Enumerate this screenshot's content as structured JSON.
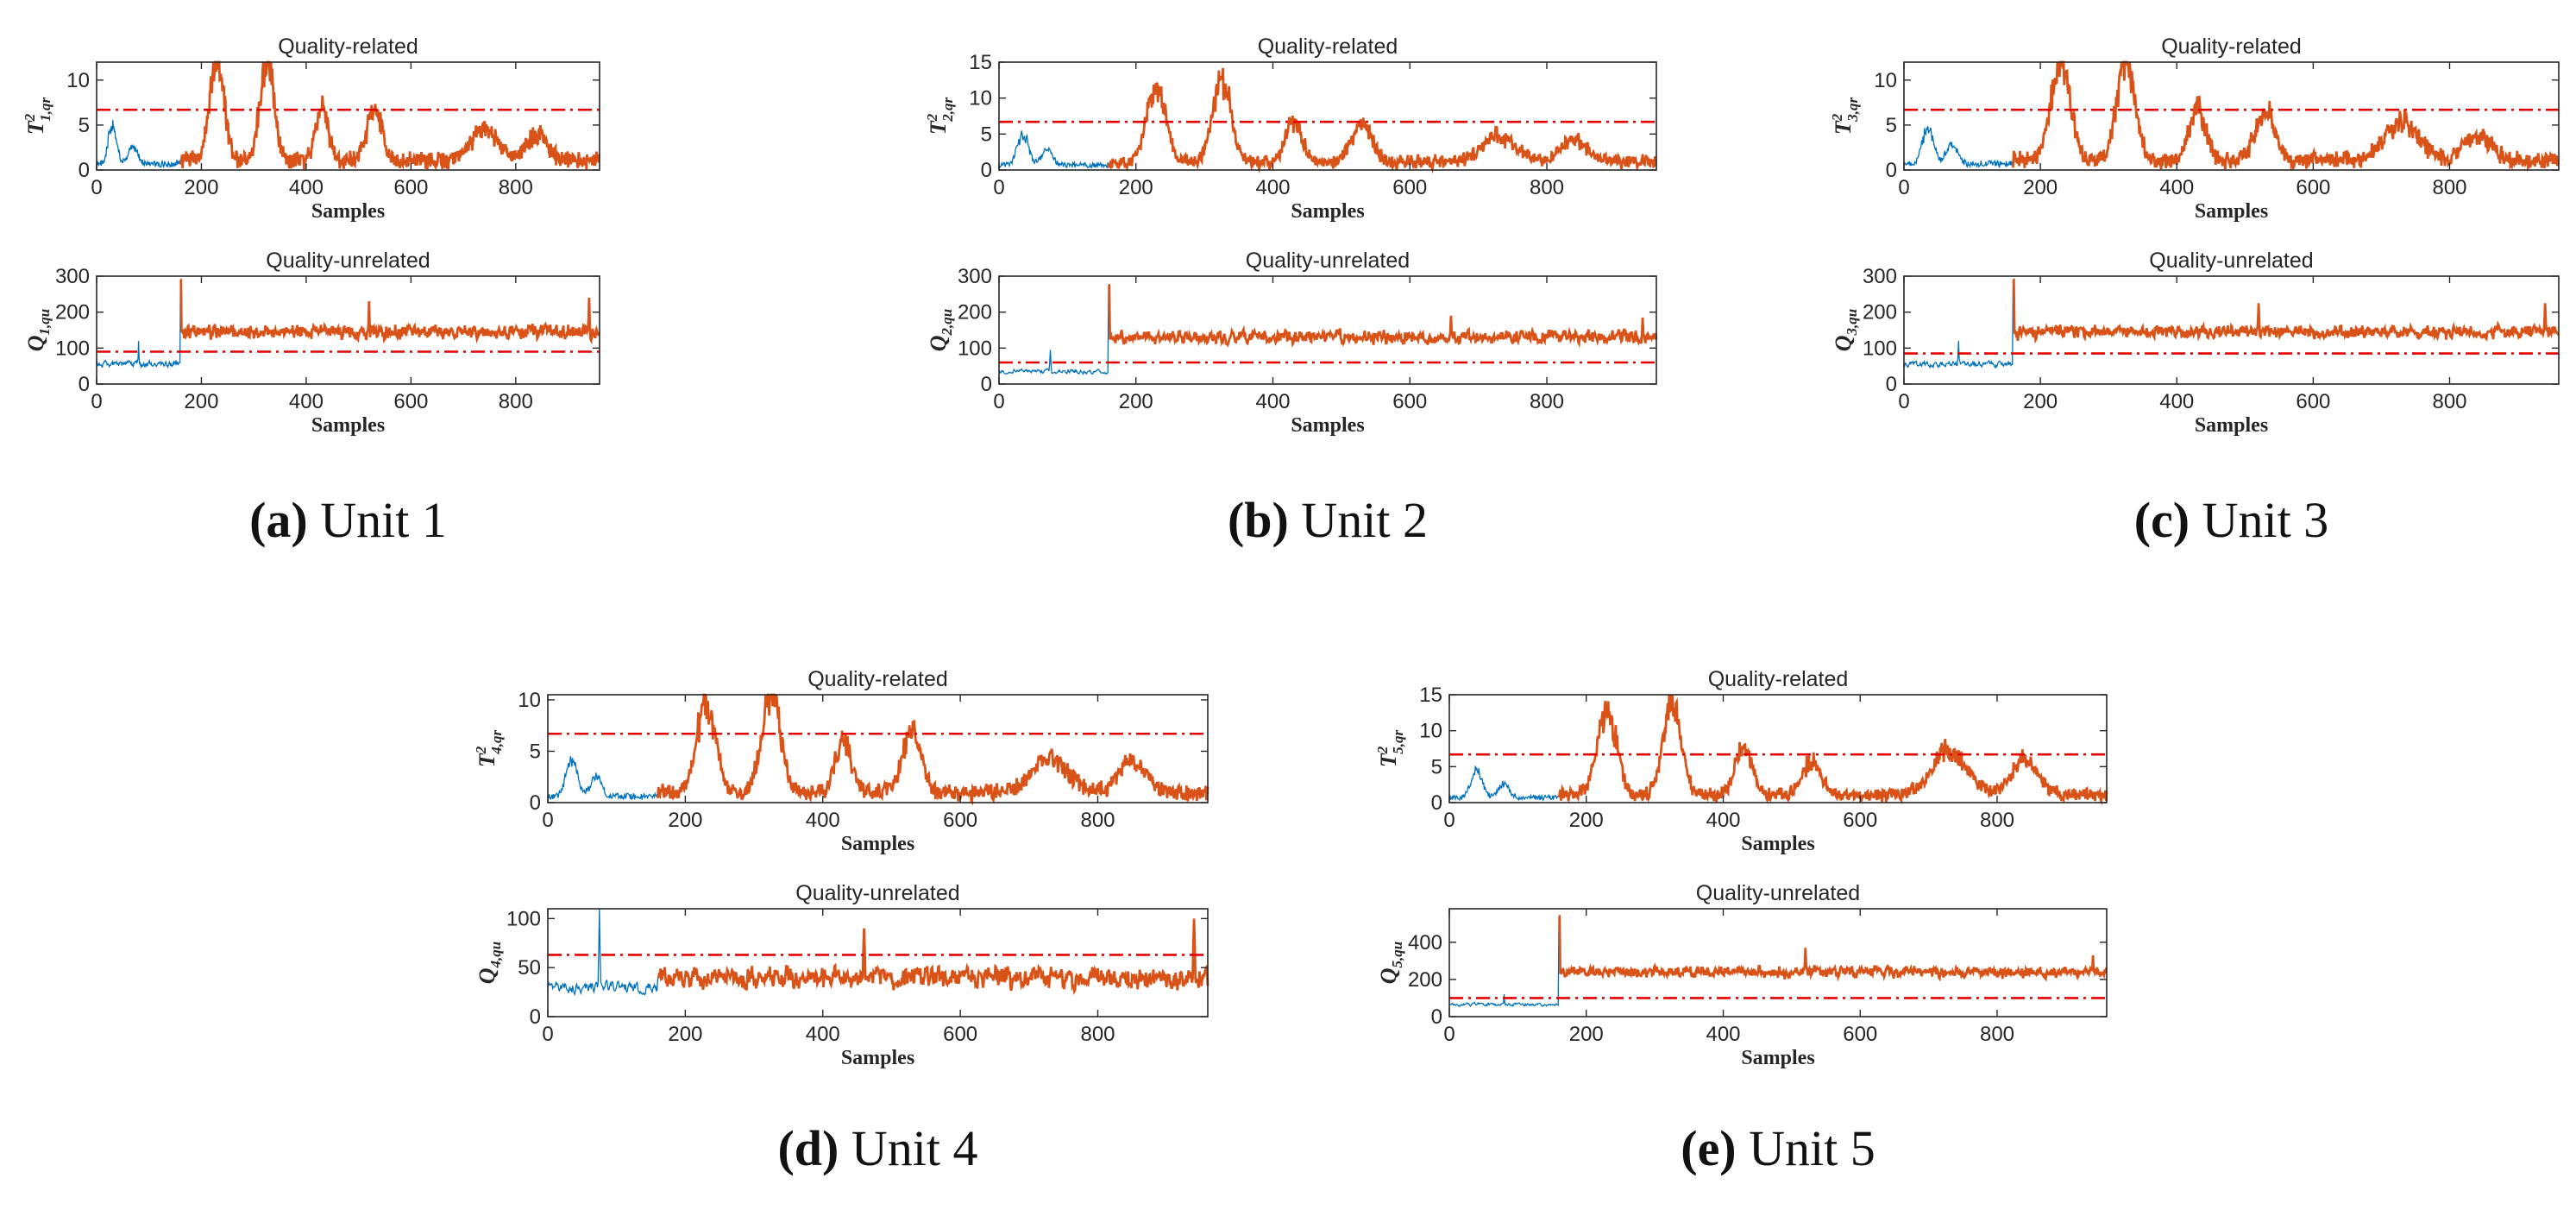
{
  "colors": {
    "normal": "#0072BD",
    "fault": "#D95319",
    "threshold": "#E60000",
    "axis": "#262626"
  },
  "common": {
    "xlabel": "Samples",
    "x_range": [
      0,
      960
    ],
    "x_ticks": [
      0,
      200,
      400,
      600,
      800
    ],
    "fault_onset": 160,
    "top_title": "Quality-related",
    "bottom_title": "Quality-unrelated"
  },
  "chart_data": [
    {
      "caption_letter": "(a)",
      "caption_text": "Unit 1",
      "top": {
        "type": "line",
        "ylabel_main": "T",
        "ylabel_sub": "1,qr",
        "ylabel_sup": "2",
        "ylim": [
          0,
          12
        ],
        "yticks": [
          0,
          5,
          10
        ],
        "threshold": 6.7,
        "normal_level": 0.8,
        "normal_spikes": [
          [
            30,
            4.9
          ],
          [
            70,
            2.4
          ]
        ],
        "baseline": 1.2,
        "noise": 0.8,
        "peaks": [
          [
            230,
            11.5,
            14
          ],
          [
            325,
            11.8,
            13
          ],
          [
            430,
            6.2,
            12
          ],
          [
            530,
            5.9,
            14
          ],
          [
            740,
            3.8,
            25
          ],
          [
            840,
            3.0,
            20
          ]
        ]
      },
      "bottom": {
        "type": "line",
        "ylabel_main": "Q",
        "ylabel_sub": "1,qu",
        "ylim": [
          0,
          300
        ],
        "yticks": [
          0,
          100,
          200,
          300
        ],
        "threshold": 90,
        "normal_level": 55,
        "normal_noise": 14,
        "normal_spikes": [
          [
            80,
            120
          ]
        ],
        "jump_peak": 290,
        "fault_level": 145,
        "fault_noise": 22,
        "fault_spikes": [
          [
            940,
            240
          ],
          [
            520,
            230
          ]
        ]
      }
    },
    {
      "caption_letter": "(b)",
      "caption_text": "Unit 2",
      "top": {
        "type": "line",
        "ylabel_main": "T",
        "ylabel_sub": "2,qr",
        "ylabel_sup": "2",
        "ylim": [
          0,
          15
        ],
        "yticks": [
          0,
          5,
          10,
          15
        ],
        "threshold": 6.7,
        "normal_level": 0.8,
        "normal_spikes": [
          [
            35,
            5.2
          ],
          [
            70,
            2.5
          ]
        ],
        "baseline": 1.2,
        "noise": 0.9,
        "peaks": [
          [
            230,
            11.0,
            14
          ],
          [
            325,
            12.2,
            13
          ],
          [
            430,
            5.8,
            12
          ],
          [
            530,
            5.5,
            14
          ],
          [
            730,
            3.8,
            25
          ],
          [
            840,
            3.4,
            20
          ]
        ]
      },
      "bottom": {
        "type": "line",
        "ylabel_main": "Q",
        "ylabel_sub": "2,qu",
        "ylim": [
          0,
          300
        ],
        "yticks": [
          0,
          100,
          200,
          300
        ],
        "threshold": 60,
        "normal_level": 35,
        "normal_noise": 10,
        "normal_spikes": [
          [
            75,
            95
          ]
        ],
        "jump_peak": 275,
        "fault_level": 130,
        "fault_noise": 22,
        "fault_spikes": [
          [
            940,
            185
          ],
          [
            660,
            190
          ]
        ]
      }
    },
    {
      "caption_letter": "(c)",
      "caption_text": "Unit 3",
      "top": {
        "type": "line",
        "ylabel_main": "T",
        "ylabel_sub": "3,qr",
        "ylabel_sup": "2",
        "ylim": [
          0,
          12
        ],
        "yticks": [
          0,
          5,
          10
        ],
        "threshold": 6.7,
        "normal_level": 0.8,
        "normal_spikes": [
          [
            35,
            4.8
          ],
          [
            70,
            2.6
          ]
        ],
        "baseline": 1.2,
        "noise": 0.8,
        "peaks": [
          [
            230,
            11.5,
            14
          ],
          [
            325,
            11.9,
            13
          ],
          [
            430,
            6.0,
            12
          ],
          [
            530,
            5.8,
            14
          ],
          [
            730,
            4.5,
            25
          ],
          [
            840,
            3.0,
            20
          ]
        ]
      },
      "bottom": {
        "type": "line",
        "ylabel_main": "Q",
        "ylabel_sub": "3,qu",
        "ylim": [
          0,
          300
        ],
        "yticks": [
          0,
          100,
          200,
          300
        ],
        "threshold": 85,
        "normal_level": 55,
        "normal_noise": 14,
        "normal_spikes": [
          [
            80,
            120
          ]
        ],
        "jump_peak": 290,
        "fault_level": 145,
        "fault_noise": 22,
        "fault_spikes": [
          [
            940,
            225
          ],
          [
            520,
            225
          ]
        ]
      }
    },
    {
      "caption_letter": "(d)",
      "caption_text": "Unit 4",
      "top": {
        "type": "line",
        "ylabel_main": "T",
        "ylabel_sub": "4,qr",
        "ylabel_sup": "2",
        "ylim": [
          0,
          10.5
        ],
        "yticks": [
          0,
          5,
          10
        ],
        "threshold": 6.7,
        "normal_level": 0.7,
        "normal_spikes": [
          [
            35,
            4.5
          ],
          [
            70,
            2.3
          ]
        ],
        "baseline": 1.1,
        "noise": 0.7,
        "peaks": [
          [
            230,
            9.3,
            14
          ],
          [
            325,
            10.4,
            13
          ],
          [
            430,
            5.4,
            12
          ],
          [
            530,
            6.2,
            14
          ],
          [
            730,
            3.6,
            25
          ],
          [
            850,
            3.0,
            20
          ]
        ]
      },
      "bottom": {
        "type": "line",
        "ylabel_main": "Q",
        "ylabel_sub": "4,qu",
        "ylim": [
          0,
          110
        ],
        "yticks": [
          0,
          50,
          100
        ],
        "threshold": 63,
        "normal_level": 30,
        "normal_noise": 10,
        "normal_spikes": [
          [
            75,
            110
          ]
        ],
        "jump_peak": 40,
        "fault_level": 40,
        "fault_noise": 13,
        "fault_spikes": [
          [
            940,
            100
          ],
          [
            460,
            90
          ]
        ]
      }
    },
    {
      "caption_letter": "(e)",
      "caption_text": "Unit 5",
      "top": {
        "type": "line",
        "ylabel_main": "T",
        "ylabel_sub": "5,qr",
        "ylabel_sup": "2",
        "ylim": [
          0,
          15
        ],
        "yticks": [
          0,
          5,
          10,
          15
        ],
        "threshold": 6.7,
        "normal_level": 0.8,
        "normal_spikes": [
          [
            40,
            4.6
          ],
          [
            80,
            2.2
          ]
        ],
        "baseline": 1.2,
        "noise": 0.9,
        "peaks": [
          [
            230,
            12.4,
            14
          ],
          [
            325,
            13.4,
            13
          ],
          [
            430,
            7.3,
            12
          ],
          [
            530,
            4.8,
            14
          ],
          [
            730,
            6.4,
            25
          ],
          [
            840,
            5.1,
            20
          ]
        ]
      },
      "bottom": {
        "type": "line",
        "ylabel_main": "Q",
        "ylabel_sub": "5,qu",
        "ylim": [
          0,
          580
        ],
        "yticks": [
          0,
          200,
          400
        ],
        "threshold": 100,
        "normal_level": 65,
        "normal_noise": 15,
        "normal_spikes": [
          [
            80,
            120
          ]
        ],
        "jump_peak": 540,
        "fault_level": 240,
        "fault_noise": 35,
        "fault_spikes": [
          [
            940,
            330
          ],
          [
            520,
            370
          ]
        ]
      }
    }
  ]
}
